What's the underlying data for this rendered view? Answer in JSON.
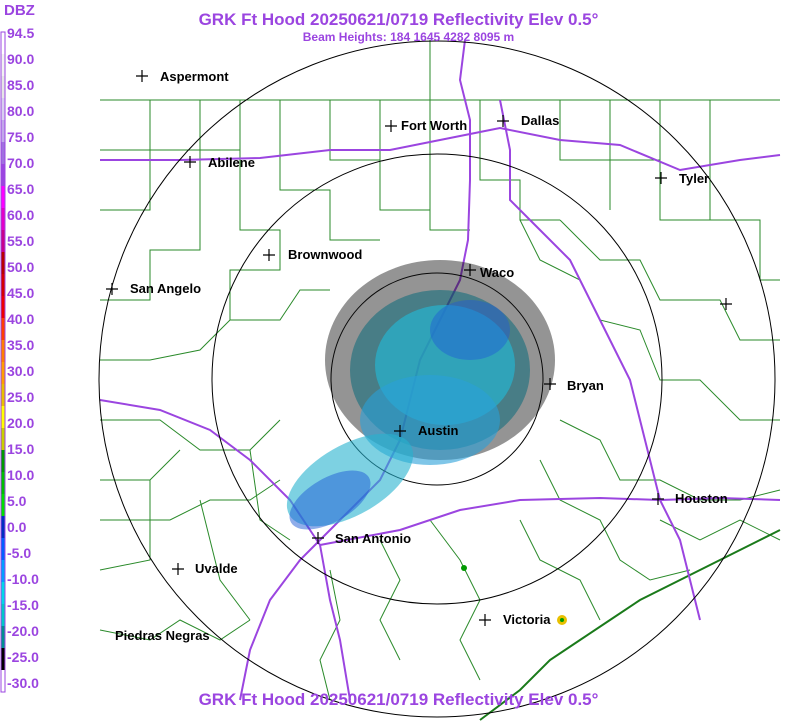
{
  "header": {
    "title": "GRK Ft Hood 20250621/0719 Reflectivity Elev 0.5°",
    "subtitle": "Beam Heights: 184 1645 4282 8095 m",
    "footer_title": "GRK Ft Hood 20250621/0719 Reflectivity Elev 0.5°"
  },
  "scale": {
    "unit_label": "DBZ",
    "ticks": [
      "94.5",
      "90.0",
      "85.0",
      "80.0",
      "75.0",
      "70.0",
      "65.0",
      "60.0",
      "55.0",
      "50.0",
      "45.0",
      "40.0",
      "35.0",
      "30.0",
      "25.0",
      "20.0",
      "15.0",
      "10.0",
      "5.0",
      "0.0",
      "-5.0",
      "-10.0",
      "-15.0",
      "-20.0",
      "-25.0",
      "-30.0"
    ],
    "colors": [
      "#ffffff",
      "#f2f2f2",
      "#e6e6e6",
      "#d8cff0",
      "#c2a8ea",
      "#a070e0",
      "#9b45e0",
      "#ff00ff",
      "#e400c8",
      "#c8008c",
      "#b80000",
      "#d40000",
      "#ee0000",
      "#ff4000",
      "#ff8000",
      "#ffa000",
      "#e8c000",
      "#ffff00",
      "#c8d000",
      "#009a00",
      "#00c000",
      "#00e000",
      "#0030c0",
      "#0060ff",
      "#00a0ff",
      "#00d8e8",
      "#00c8c8",
      "#009090",
      "#000000",
      "#ffffff"
    ]
  },
  "cities": [
    {
      "name": "Aspermont"
    },
    {
      "name": "Fort Worth"
    },
    {
      "name": "Dallas"
    },
    {
      "name": "Abilene"
    },
    {
      "name": "Tyler"
    },
    {
      "name": "Brownwood"
    },
    {
      "name": "Waco"
    },
    {
      "name": "San Angelo"
    },
    {
      "name": "Bryan"
    },
    {
      "name": "Austin"
    },
    {
      "name": "Houston"
    },
    {
      "name": "San Antonio"
    },
    {
      "name": "Uvalde"
    },
    {
      "name": "Victoria"
    },
    {
      "name": "Piedras Negras"
    }
  ],
  "colors": {
    "label": "#9b45e0",
    "county_lines": "#2a8a2a",
    "highways": "#9b45e0",
    "range_rings": "#000000"
  }
}
